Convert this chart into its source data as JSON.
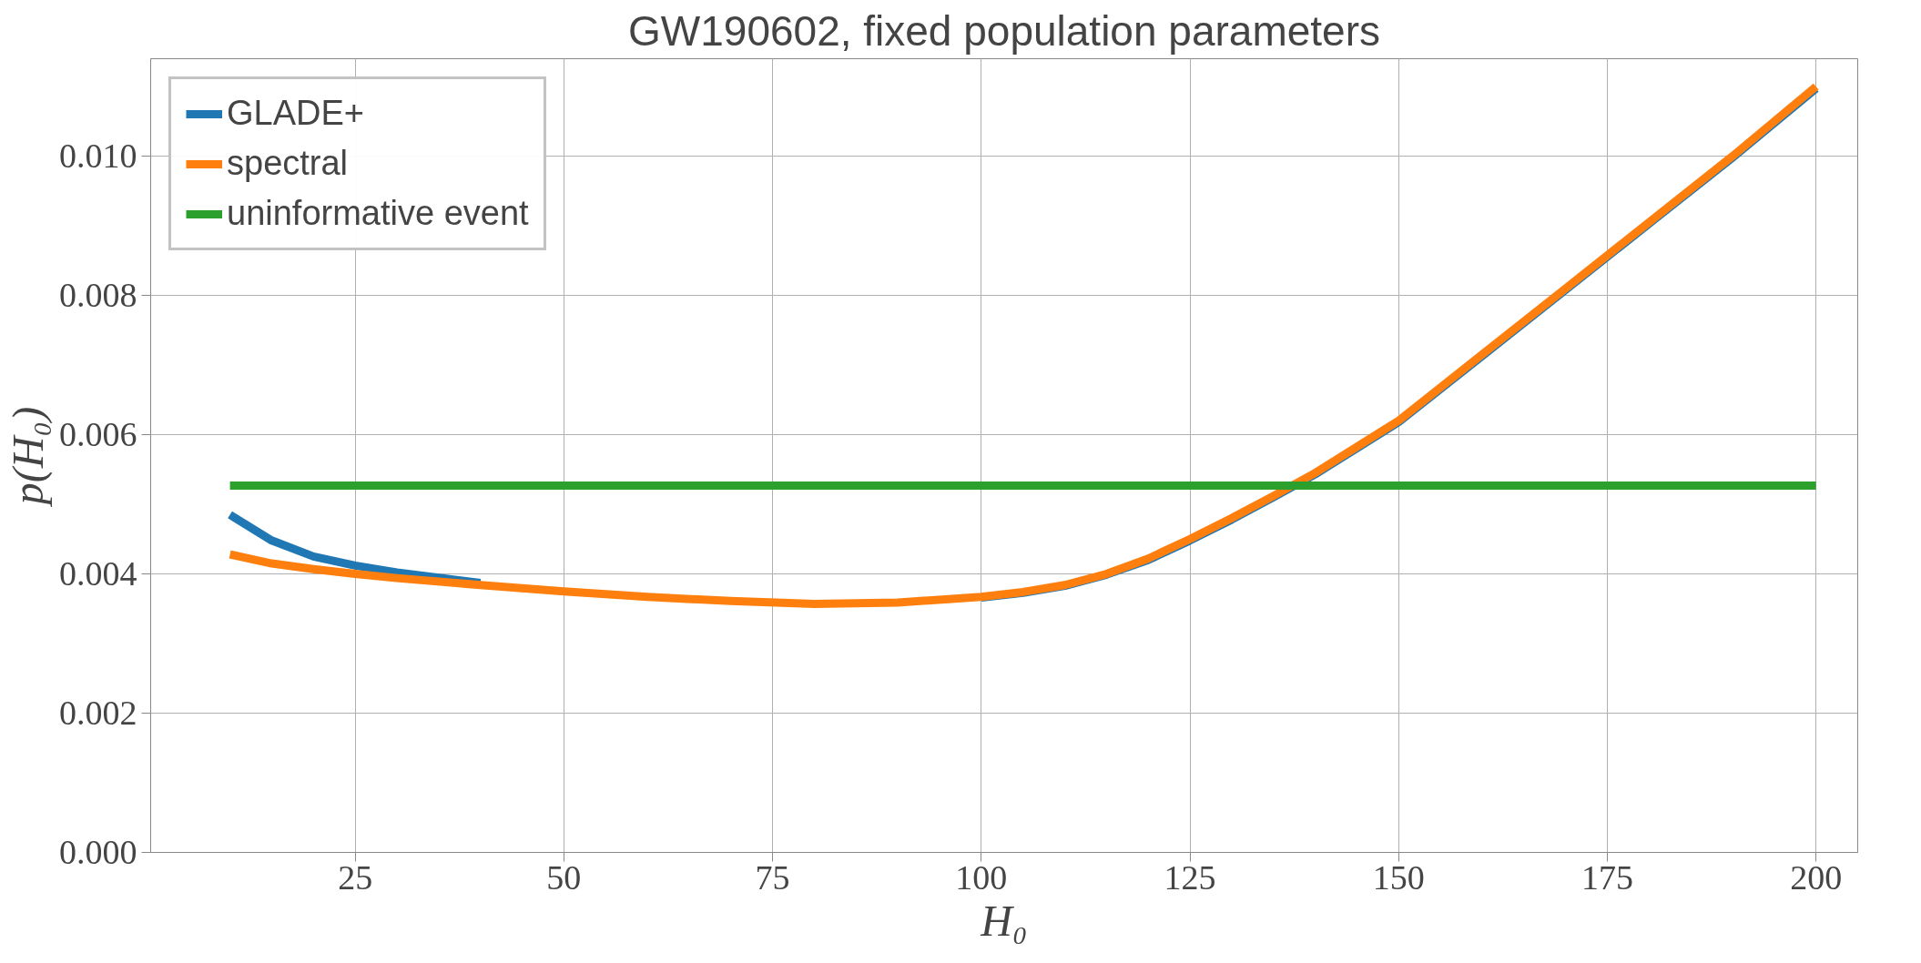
{
  "chart_data": {
    "type": "line",
    "title": "GW190602, fixed population parameters",
    "xlabel": "H₀",
    "ylabel": "p(H₀)",
    "xlim": [
      0.5,
      205
    ],
    "ylim": [
      0,
      0.0114
    ],
    "xticks": [
      25,
      50,
      75,
      100,
      125,
      150,
      175,
      200
    ],
    "yticks": [
      {
        "value": 0,
        "label": "0.000"
      },
      {
        "value": 0.002,
        "label": "0.002"
      },
      {
        "value": 0.004,
        "label": "0.004"
      },
      {
        "value": 0.006,
        "label": "0.006"
      },
      {
        "value": 0.008,
        "label": "0.008"
      },
      {
        "value": 0.01,
        "label": "0.010"
      }
    ],
    "grid": true,
    "legend": "top left",
    "line_style": "solid",
    "marker": "none",
    "series": [
      {
        "name": "GLADE+",
        "color": "#1f77b4",
        "x": [
          10,
          15,
          20,
          25,
          30,
          40,
          50,
          60,
          70,
          80,
          90,
          100,
          105,
          110,
          115,
          120,
          125,
          130,
          135,
          140,
          150,
          160,
          170,
          180,
          190,
          200
        ],
        "values": [
          0.00485,
          0.00448,
          0.00425,
          0.00412,
          0.00402,
          0.00387,
          null,
          null,
          null,
          null,
          null,
          0.00366,
          0.00373,
          0.00383,
          0.00399,
          0.0042,
          0.00448,
          0.00478,
          0.0051,
          0.00543,
          0.00618,
          0.00713,
          0.00808,
          0.00903,
          0.00998,
          0.01097
        ]
      },
      {
        "name": "spectral",
        "color": "#ff7f0e",
        "x": [
          10,
          15,
          20,
          25,
          30,
          40,
          50,
          60,
          70,
          80,
          90,
          100,
          105,
          110,
          115,
          120,
          125,
          130,
          135,
          140,
          150,
          160,
          170,
          180,
          190,
          200
        ],
        "values": [
          0.00428,
          0.00415,
          0.00407,
          0.004,
          0.00394,
          0.00384,
          0.00375,
          0.00367,
          0.00361,
          0.00357,
          0.00359,
          0.00367,
          0.00374,
          0.00384,
          0.004,
          0.00422,
          0.0045,
          0.0048,
          0.00512,
          0.00545,
          0.0062,
          0.00715,
          0.0081,
          0.00905,
          0.01,
          0.011
        ]
      },
      {
        "name": "uninformative event",
        "color": "#2ca02c",
        "x": [
          10,
          200
        ],
        "values": [
          0.00527,
          0.00527
        ]
      }
    ]
  }
}
